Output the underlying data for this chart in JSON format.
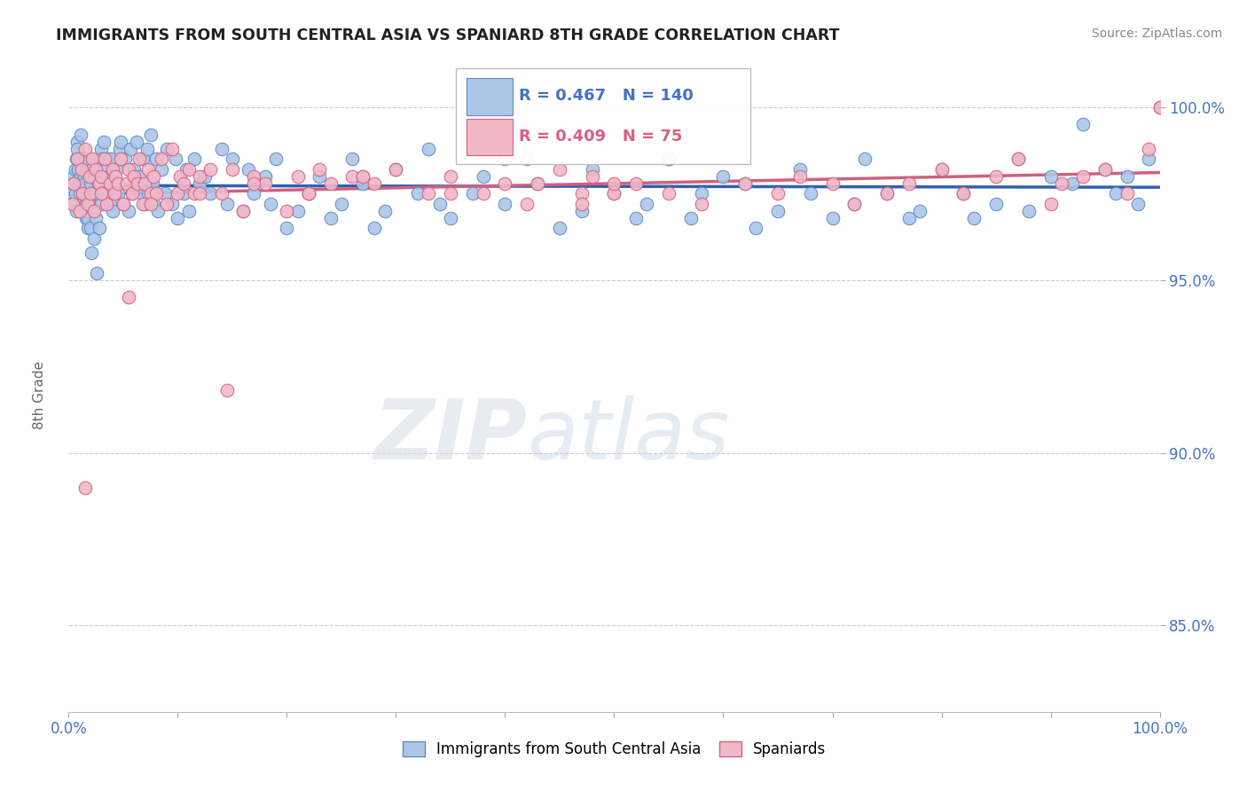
{
  "title": "IMMIGRANTS FROM SOUTH CENTRAL ASIA VS SPANIARD 8TH GRADE CORRELATION CHART",
  "source": "Source: ZipAtlas.com",
  "ylabel": "8th Grade",
  "blue_R": 0.467,
  "blue_N": 140,
  "pink_R": 0.409,
  "pink_N": 75,
  "blue_color": "#adc6e8",
  "pink_color": "#f0b8c8",
  "blue_edge_color": "#5b8ec4",
  "pink_edge_color": "#d96080",
  "blue_line_color": "#3060b0",
  "pink_line_color": "#d06080",
  "legend_blue_color": "#4472c4",
  "legend_pink_color": "#c0406060",
  "background_color": "#ffffff",
  "watermark_zip": "ZIP",
  "watermark_atlas": "atlas",
  "xlim": [
    0,
    100
  ],
  "ylim": [
    82.5,
    101.5
  ],
  "x_ticks": [
    0,
    10,
    20,
    30,
    40,
    50,
    60,
    70,
    80,
    90,
    100
  ],
  "y_ticks": [
    85.0,
    90.0,
    95.0,
    100.0
  ],
  "blue_x": [
    0.3,
    0.4,
    0.5,
    0.5,
    0.6,
    0.6,
    0.7,
    0.7,
    0.8,
    0.8,
    0.9,
    1.0,
    1.0,
    1.0,
    1.1,
    1.1,
    1.2,
    1.2,
    1.3,
    1.3,
    1.4,
    1.5,
    1.5,
    1.6,
    1.6,
    1.7,
    1.8,
    1.8,
    1.9,
    2.0,
    2.0,
    2.1,
    2.1,
    2.2,
    2.3,
    2.4,
    2.5,
    2.5,
    2.6,
    2.7,
    2.8,
    2.9,
    3.0,
    3.0,
    3.1,
    3.2,
    3.3,
    3.4,
    3.5,
    3.6,
    3.7,
    3.8,
    3.9,
    4.0,
    4.2,
    4.4,
    4.5,
    4.7,
    4.8,
    5.0,
    5.2,
    5.5,
    5.7,
    5.8,
    6.0,
    6.2,
    6.3,
    6.5,
    6.7,
    6.8,
    7.0,
    7.2,
    7.3,
    7.5,
    7.7,
    7.8,
    8.0,
    8.2,
    8.5,
    8.8,
    9.0,
    9.5,
    9.8,
    10.0,
    10.5,
    10.8,
    11.0,
    11.5,
    12.0,
    12.5,
    13.0,
    14.0,
    14.5,
    15.0,
    16.0,
    16.5,
    17.0,
    18.0,
    18.5,
    19.0,
    20.0,
    21.0,
    22.0,
    23.0,
    24.0,
    25.0,
    26.0,
    27.0,
    28.0,
    29.0,
    30.0,
    32.0,
    33.0,
    34.0,
    35.0,
    37.0,
    38.0,
    40.0,
    42.0,
    43.0,
    45.0,
    47.0,
    48.0,
    50.0,
    52.0,
    53.0,
    55.0,
    57.0,
    58.0,
    60.0,
    62.0,
    63.0,
    65.0,
    67.0,
    68.0,
    70.0,
    72.0,
    73.0,
    75.0,
    77.0
  ],
  "blue_y": [
    97.5,
    97.2,
    98.0,
    97.8,
    98.2,
    97.5,
    98.5,
    97.0,
    99.0,
    98.8,
    98.2,
    97.8,
    98.5,
    97.5,
    99.2,
    98.0,
    97.8,
    98.5,
    97.2,
    97.5,
    98.0,
    98.5,
    97.8,
    96.8,
    97.2,
    97.5,
    96.5,
    96.8,
    97.2,
    96.5,
    97.8,
    98.2,
    95.8,
    97.5,
    96.2,
    98.0,
    96.8,
    97.5,
    95.2,
    97.8,
    96.5,
    98.5,
    98.8,
    97.2,
    98.5,
    99.0,
    98.2,
    97.5,
    97.8,
    98.0,
    98.5,
    97.2,
    98.5,
    97.0,
    97.8,
    98.2,
    97.5,
    98.8,
    99.0,
    97.2,
    98.5,
    97.0,
    98.8,
    97.5,
    98.2,
    99.0,
    97.8,
    98.0,
    97.5,
    98.5,
    97.2,
    98.8,
    97.5,
    99.2,
    97.8,
    97.2,
    98.5,
    97.0,
    98.2,
    97.5,
    98.8,
    97.2,
    98.5,
    96.8,
    97.5,
    98.2,
    97.0,
    98.5,
    97.8,
    98.0,
    97.5,
    98.8,
    97.2,
    98.5,
    97.0,
    98.2,
    97.5,
    98.0,
    97.2,
    98.5,
    96.5,
    97.0,
    97.5,
    98.0,
    96.8,
    97.2,
    98.5,
    97.8,
    96.5,
    97.0,
    98.2,
    97.5,
    98.8,
    97.2,
    96.8,
    97.5,
    98.0,
    97.2,
    98.5,
    97.8,
    96.5,
    97.0,
    98.2,
    97.5,
    96.8,
    97.2,
    98.5,
    96.8,
    97.5,
    98.0,
    97.8,
    96.5,
    97.0,
    98.2,
    97.5,
    96.8,
    97.2,
    98.5,
    97.5,
    96.8
  ],
  "blue_x_extra": [
    78.0,
    80.0,
    82.0,
    83.0,
    85.0,
    87.0,
    88.0,
    90.0,
    92.0,
    93.0,
    95.0,
    96.0,
    97.0,
    98.0,
    99.0,
    100.0
  ],
  "blue_y_extra": [
    97.0,
    98.2,
    97.5,
    96.8,
    97.2,
    98.5,
    97.0,
    98.0,
    97.8,
    99.5,
    98.2,
    97.5,
    98.0,
    97.2,
    98.5,
    100.0
  ],
  "pink_x": [
    0.4,
    0.5,
    0.8,
    1.0,
    1.2,
    1.3,
    1.5,
    1.8,
    1.9,
    2.0,
    2.2,
    2.3,
    2.5,
    2.8,
    3.0,
    3.2,
    3.3,
    3.5,
    3.8,
    4.0,
    4.2,
    4.3,
    4.5,
    4.8,
    5.0,
    5.3,
    5.5,
    5.8,
    6.0,
    6.3,
    6.5,
    6.8,
    7.0,
    7.3,
    7.5,
    7.8,
    8.0,
    8.5,
    9.0,
    9.5,
    10.0,
    10.2,
    10.5,
    11.0,
    11.5,
    12.0,
    13.0,
    14.0,
    14.5,
    15.0,
    16.0,
    17.0,
    18.0,
    20.0,
    21.0,
    22.0,
    23.0,
    24.0,
    26.0,
    27.0,
    28.0,
    30.0,
    33.0,
    35.0,
    38.0,
    40.0,
    42.0,
    43.0,
    45.0,
    47.0,
    48.0,
    50.0,
    52.0,
    55.0
  ],
  "pink_y": [
    97.2,
    97.8,
    98.5,
    97.0,
    98.2,
    97.5,
    98.8,
    97.2,
    98.0,
    97.5,
    98.5,
    97.0,
    98.2,
    97.8,
    98.0,
    97.5,
    98.5,
    97.2,
    97.8,
    98.2,
    97.5,
    98.0,
    97.8,
    98.5,
    97.2,
    97.8,
    98.2,
    97.5,
    98.0,
    97.8,
    98.5,
    97.2,
    97.8,
    98.2,
    97.5,
    98.0,
    97.5,
    98.5,
    97.2,
    98.8,
    97.5,
    98.0,
    97.8,
    98.2,
    97.5,
    98.0,
    98.2,
    97.5,
    91.8,
    98.2,
    97.0,
    98.0,
    97.8,
    97.0,
    98.0,
    97.5,
    98.2,
    97.8,
    98.0,
    98.0,
    97.8,
    98.2,
    97.5,
    98.0,
    97.5,
    98.5,
    97.2,
    97.8,
    98.2,
    97.5,
    98.0,
    97.5,
    97.8,
    98.5
  ],
  "pink_x_sparse": [
    1.5,
    3.0,
    5.5,
    7.5,
    12.0,
    17.0,
    22.0,
    27.0,
    35.0,
    40.0,
    47.0,
    50.0,
    55.0,
    58.0,
    62.0,
    65.0,
    67.0,
    70.0,
    72.0,
    75.0,
    77.0,
    80.0,
    82.0,
    85.0,
    87.0,
    90.0,
    91.0,
    93.0,
    95.0,
    97.0,
    99.0,
    100.0
  ],
  "pink_y_sparse": [
    89.0,
    97.5,
    94.5,
    97.2,
    97.5,
    97.8,
    97.5,
    98.0,
    97.5,
    97.8,
    97.2,
    97.8,
    97.5,
    97.2,
    97.8,
    97.5,
    98.0,
    97.8,
    97.2,
    97.5,
    97.8,
    98.2,
    97.5,
    98.0,
    98.5,
    97.2,
    97.8,
    98.0,
    98.2,
    97.5,
    98.8,
    100.0
  ]
}
